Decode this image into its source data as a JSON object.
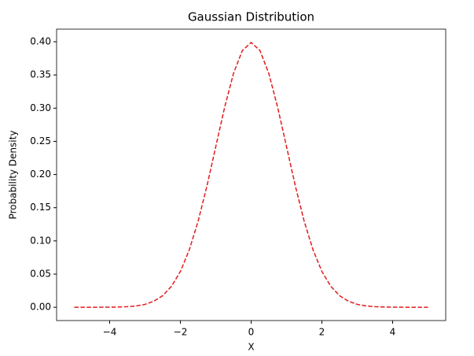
{
  "chart_data": {
    "type": "line",
    "title": "Gaussian Distribution",
    "xlabel": "X",
    "ylabel": "Probability Density",
    "x": [
      -5,
      -4.75,
      -4.5,
      -4.25,
      -4,
      -3.75,
      -3.5,
      -3.25,
      -3,
      -2.75,
      -2.5,
      -2.25,
      -2,
      -1.75,
      -1.5,
      -1.25,
      -1,
      -0.75,
      -0.5,
      -0.25,
      0,
      0.25,
      0.5,
      0.75,
      1,
      1.25,
      1.5,
      1.75,
      2,
      2.25,
      2.5,
      2.75,
      3,
      3.25,
      3.5,
      3.75,
      4,
      4.25,
      4.5,
      4.75,
      5
    ],
    "series": [
      {
        "color": "#e41a1c",
        "dashed": true,
        "values": [
          0.0,
          0.0,
          0.0,
          0.0001,
          0.0001,
          0.0004,
          0.0009,
          0.002,
          0.0044,
          0.0091,
          0.0175,
          0.0317,
          0.054,
          0.0863,
          0.1295,
          0.1826,
          0.242,
          0.3011,
          0.3521,
          0.3867,
          0.3989,
          0.3867,
          0.3521,
          0.3011,
          0.242,
          0.1826,
          0.1295,
          0.0863,
          0.054,
          0.0317,
          0.0175,
          0.0091,
          0.0044,
          0.002,
          0.0009,
          0.0004,
          0.0001,
          0.0001,
          0.0,
          0.0,
          0.0
        ]
      }
    ],
    "xlim": [
      -5.5,
      5.5
    ],
    "xticks": [
      {
        "value": -4,
        "label": "−4"
      },
      {
        "value": -2,
        "label": "−2"
      },
      0,
      2,
      4
    ],
    "ylim": [
      -0.02,
      0.419
    ],
    "yticks": [
      {
        "value": 0,
        "label": "0.00"
      },
      {
        "value": 0.05,
        "label": "0.05"
      },
      {
        "value": 0.1,
        "label": "0.10"
      },
      {
        "value": 0.15,
        "label": "0.15"
      },
      {
        "value": 0.2,
        "label": "0.20"
      },
      {
        "value": 0.25,
        "label": "0.25"
      },
      {
        "value": 0.3,
        "label": "0.30"
      },
      {
        "value": 0.35,
        "label": "0.35"
      },
      {
        "value": 0.4,
        "label": "0.40"
      }
    ],
    "grid": false
  }
}
